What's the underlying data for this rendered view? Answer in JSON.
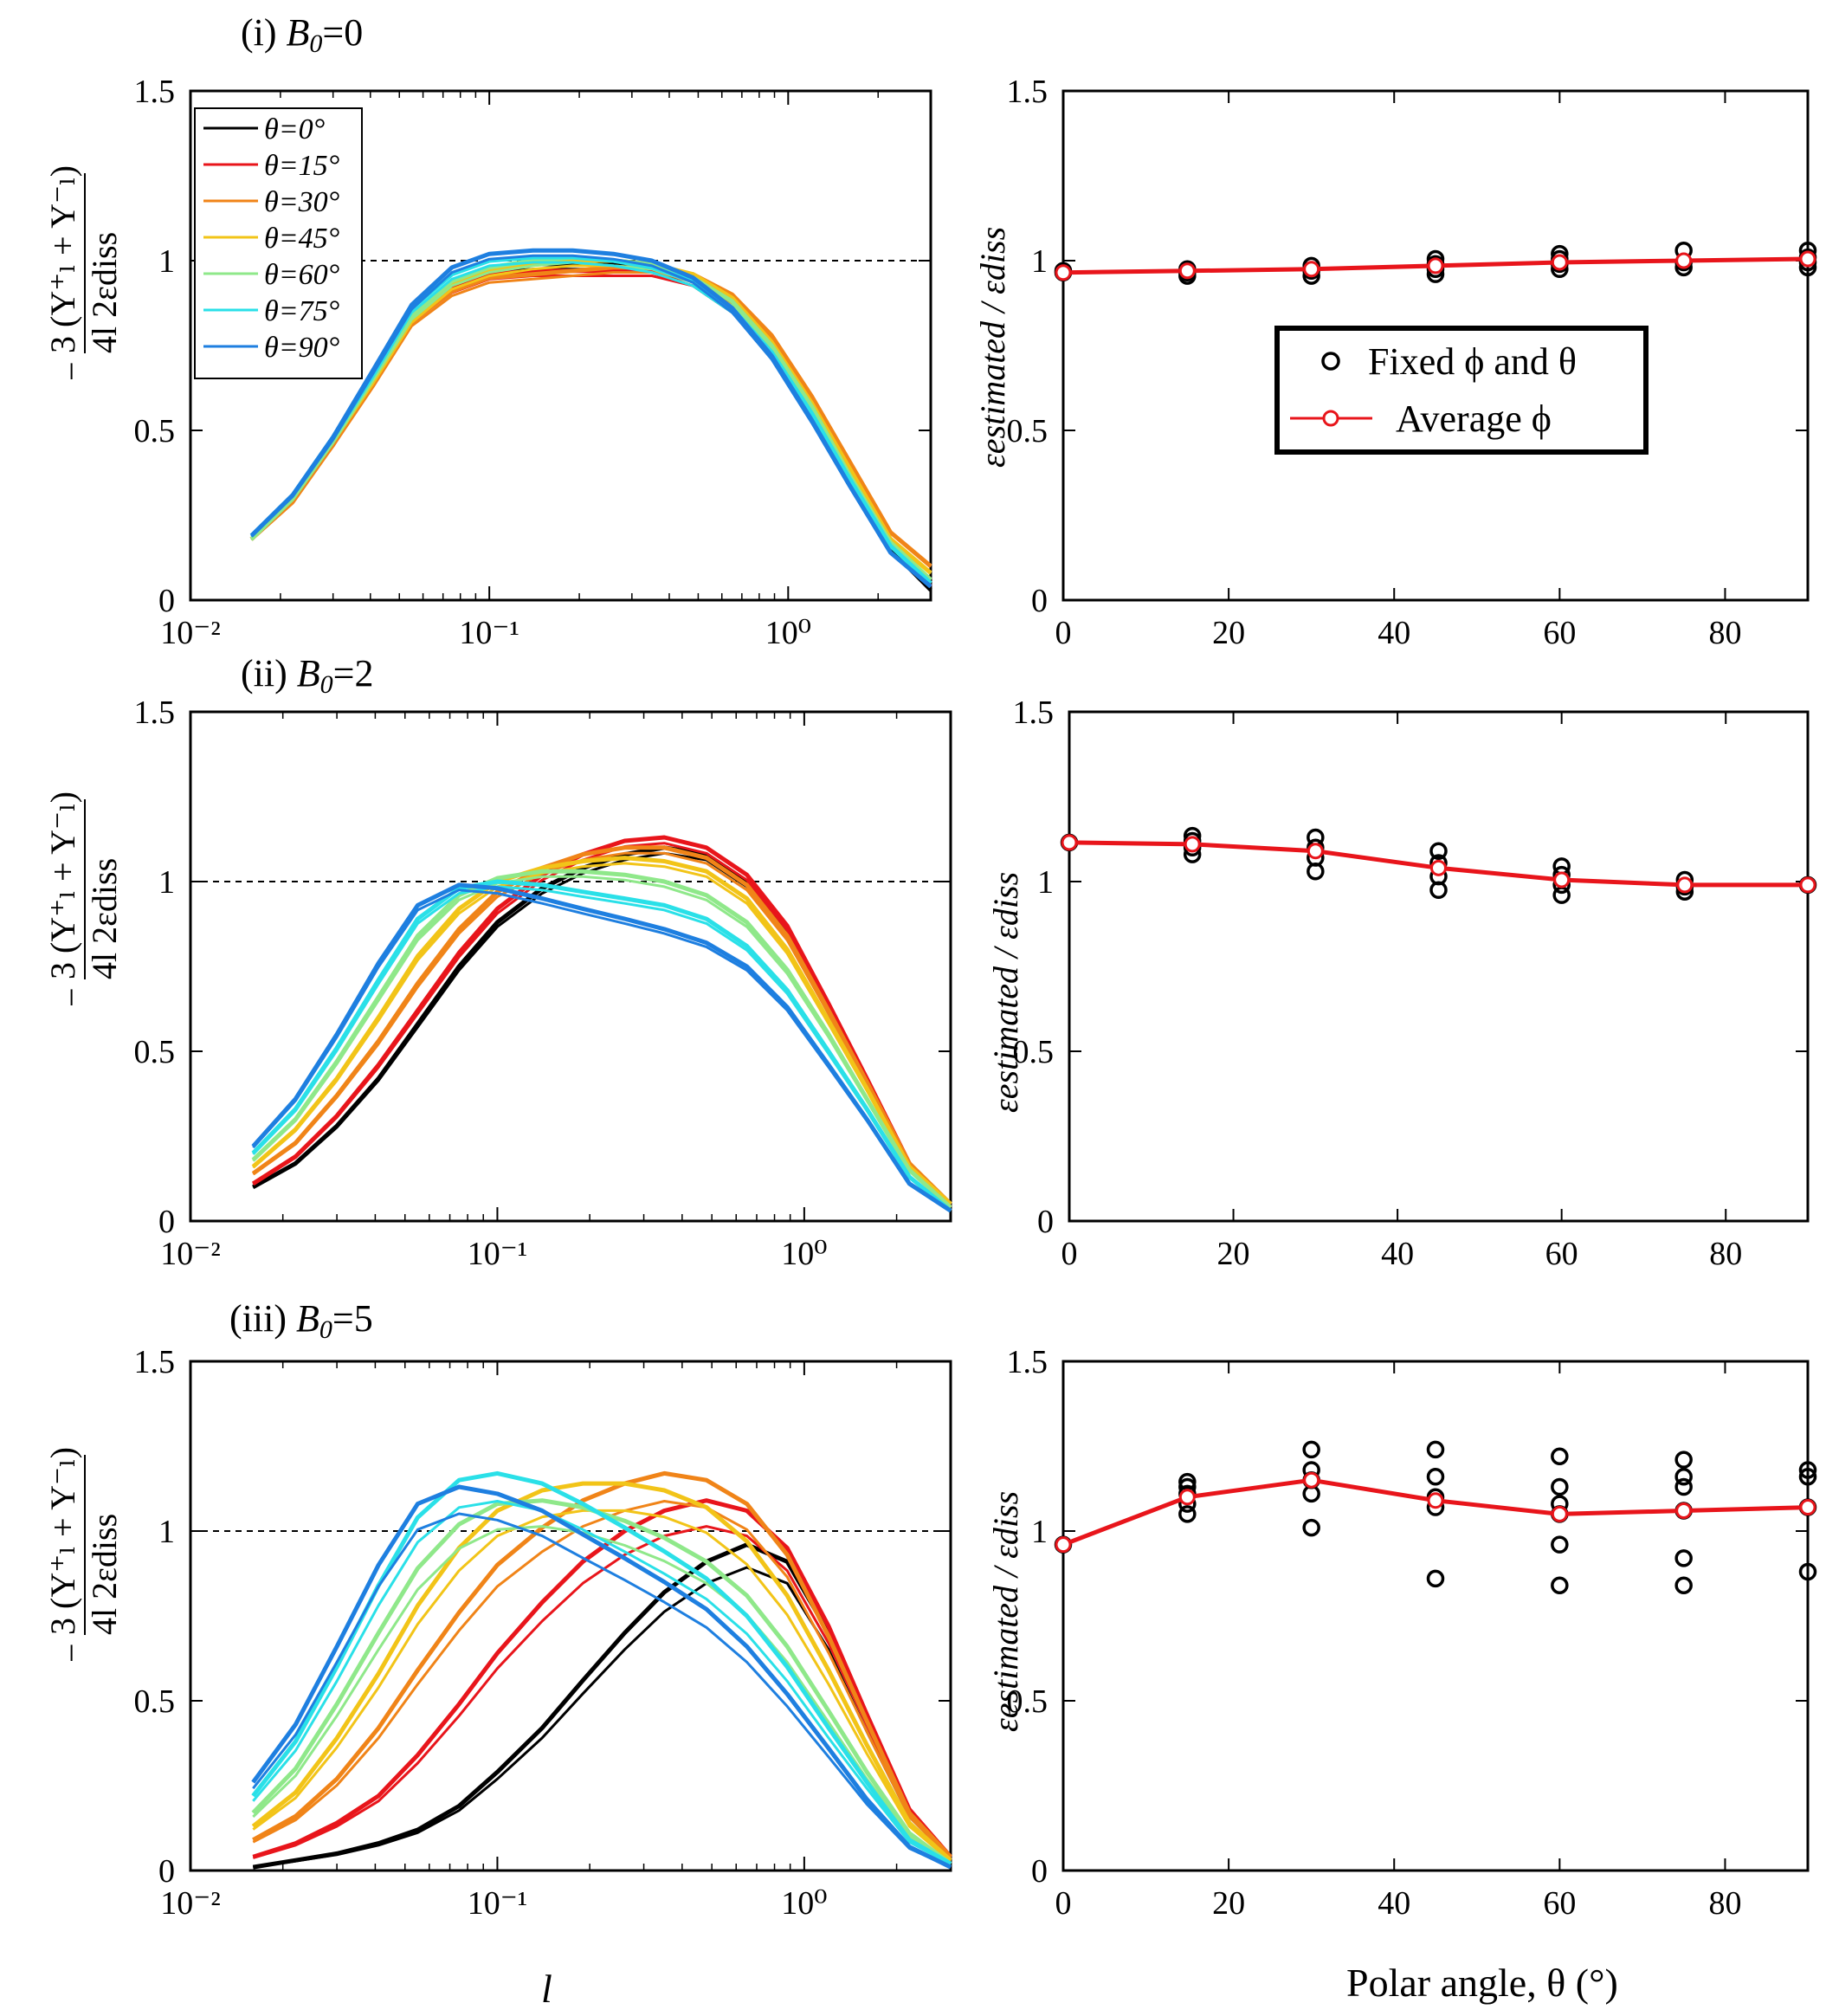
{
  "figure": {
    "row_titles": [
      "(i) B₀=0",
      "(ii) B₀=2",
      "(iii) B₀=5"
    ],
    "row_title_parts": [
      {
        "prefix": "(i) ",
        "sym": "B",
        "sub": "0",
        "val": "=0"
      },
      {
        "prefix": "(ii) ",
        "sym": "B",
        "sub": "0",
        "val": "=2"
      },
      {
        "prefix": "(iii) ",
        "sym": "B",
        "sub": "0",
        "val": "=5"
      }
    ],
    "left_ylabel_num": "3  (Y⁺ₗ + Y⁻ₗ)",
    "left_ylabel_den": "4l     2εdiss",
    "left_ylabel_minus": "−",
    "right_ylabel": "εestimated / εdiss",
    "left_xlabel": "l",
    "right_xlabel": "Polar angle, θ (°)",
    "left_yticks": [
      "0",
      "0.5",
      "1",
      "1.5"
    ],
    "left_xticks": [
      "10⁻²",
      "10⁻¹",
      "10⁰"
    ],
    "right_yticks": [
      "0",
      "0.5",
      "1",
      "1.5"
    ],
    "right_xticks": [
      "0",
      "20",
      "40",
      "60",
      "80"
    ],
    "legend_theta": [
      "θ=0°",
      "θ=15°",
      "θ=30°",
      "θ=45°",
      "θ=60°",
      "θ=75°",
      "θ=90°"
    ],
    "legend_right": [
      "Fixed ϕ and θ",
      "Average ϕ"
    ],
    "theta_colors": [
      "#000000",
      "#e8151b",
      "#f08418",
      "#f2c418",
      "#8fe88a",
      "#2ae0e8",
      "#1e7fe0"
    ]
  },
  "chart_data": [
    {
      "type": "line",
      "title": "(i) B0=0",
      "xscale": "log",
      "xlim": [
        0.01,
        3
      ],
      "ylim": [
        0,
        1.5
      ],
      "l_values": [
        0.016,
        0.022,
        0.03,
        0.041,
        0.055,
        0.075,
        0.1,
        0.14,
        0.19,
        0.26,
        0.35,
        0.48,
        0.65,
        0.88,
        1.2,
        1.6,
        2.2,
        3.0
      ],
      "reference_line": 1,
      "series": [
        {
          "name": "θ=0°",
          "values": [
            0.18,
            0.3,
            0.47,
            0.66,
            0.84,
            0.94,
            0.98,
            0.99,
            0.99,
            0.99,
            0.98,
            0.94,
            0.86,
            0.73,
            0.55,
            0.35,
            0.15,
            0.03
          ]
        },
        {
          "name": "θ=15°",
          "values": [
            0.18,
            0.3,
            0.46,
            0.65,
            0.83,
            0.92,
            0.96,
            0.97,
            0.97,
            0.97,
            0.97,
            0.94,
            0.87,
            0.75,
            0.57,
            0.37,
            0.17,
            0.04
          ]
        },
        {
          "name": "θ=30°",
          "values": [
            0.18,
            0.29,
            0.46,
            0.64,
            0.82,
            0.91,
            0.95,
            0.96,
            0.97,
            0.98,
            0.98,
            0.96,
            0.9,
            0.78,
            0.6,
            0.41,
            0.2,
            0.1
          ]
        },
        {
          "name": "θ=45°",
          "values": [
            0.18,
            0.3,
            0.47,
            0.65,
            0.83,
            0.93,
            0.97,
            0.99,
            1.0,
            1.0,
            0.99,
            0.96,
            0.89,
            0.76,
            0.58,
            0.39,
            0.18,
            0.08
          ]
        },
        {
          "name": "θ=60°",
          "values": [
            0.18,
            0.3,
            0.47,
            0.66,
            0.84,
            0.94,
            0.98,
            1.0,
            1.01,
            1.0,
            0.99,
            0.95,
            0.88,
            0.75,
            0.57,
            0.37,
            0.17,
            0.06
          ]
        },
        {
          "name": "θ=75°",
          "values": [
            0.19,
            0.31,
            0.48,
            0.67,
            0.86,
            0.96,
            1.0,
            1.01,
            1.01,
            1.0,
            0.98,
            0.94,
            0.86,
            0.73,
            0.55,
            0.36,
            0.16,
            0.05
          ]
        },
        {
          "name": "θ=90°",
          "values": [
            0.19,
            0.31,
            0.48,
            0.68,
            0.87,
            0.98,
            1.02,
            1.03,
            1.03,
            1.02,
            1.0,
            0.95,
            0.86,
            0.72,
            0.53,
            0.34,
            0.14,
            0.04
          ]
        }
      ]
    },
    {
      "type": "scatter",
      "title": "(i) B0=0 estimated / dissipation",
      "xlabel": "",
      "xlim": [
        0,
        90
      ],
      "ylim": [
        0,
        1.5
      ],
      "fixed_points": [
        {
          "theta": 0,
          "values": [
            0.965,
            0.97
          ]
        },
        {
          "theta": 15,
          "values": [
            0.955,
            0.965,
            0.975
          ]
        },
        {
          "theta": 30,
          "values": [
            0.955,
            0.97,
            0.985
          ]
        },
        {
          "theta": 45,
          "values": [
            0.96,
            0.975,
            0.99,
            1.005
          ]
        },
        {
          "theta": 60,
          "values": [
            0.975,
            0.99,
            1.005,
            1.02
          ]
        },
        {
          "theta": 75,
          "values": [
            0.98,
            0.995,
            1.03
          ]
        },
        {
          "theta": 90,
          "values": [
            0.98,
            0.995,
            1.01,
            1.03
          ]
        }
      ],
      "average": {
        "theta": [
          0,
          15,
          30,
          45,
          60,
          75,
          90
        ],
        "values": [
          0.965,
          0.97,
          0.975,
          0.985,
          0.995,
          1.0,
          1.005
        ]
      }
    },
    {
      "type": "line",
      "title": "(ii) B0=2",
      "xscale": "log",
      "xlim": [
        0.01,
        3
      ],
      "ylim": [
        0,
        1.5
      ],
      "l_values": [
        0.016,
        0.022,
        0.03,
        0.041,
        0.055,
        0.075,
        0.1,
        0.14,
        0.19,
        0.26,
        0.35,
        0.48,
        0.65,
        0.88,
        1.2,
        1.6,
        2.2,
        3.0
      ],
      "reference_line": 1,
      "series": [
        {
          "name": "θ=0°",
          "values": [
            0.1,
            0.17,
            0.28,
            0.42,
            0.58,
            0.75,
            0.88,
            0.98,
            1.04,
            1.08,
            1.1,
            1.08,
            1.0,
            0.85,
            0.62,
            0.4,
            0.16,
            0.04
          ]
        },
        {
          "name": "θ=15°",
          "values": [
            0.11,
            0.19,
            0.31,
            0.46,
            0.62,
            0.79,
            0.92,
            1.02,
            1.08,
            1.12,
            1.13,
            1.1,
            1.02,
            0.87,
            0.64,
            0.42,
            0.17,
            0.04
          ]
        },
        {
          "name": "θ=30°",
          "values": [
            0.14,
            0.23,
            0.37,
            0.53,
            0.7,
            0.86,
            0.97,
            1.04,
            1.08,
            1.1,
            1.1,
            1.07,
            0.99,
            0.84,
            0.62,
            0.41,
            0.17,
            0.05
          ]
        },
        {
          "name": "θ=45°",
          "values": [
            0.16,
            0.27,
            0.42,
            0.6,
            0.78,
            0.92,
            1.0,
            1.04,
            1.06,
            1.07,
            1.06,
            1.03,
            0.95,
            0.8,
            0.59,
            0.39,
            0.16,
            0.05
          ]
        },
        {
          "name": "θ=60°",
          "values": [
            0.18,
            0.3,
            0.47,
            0.66,
            0.84,
            0.96,
            1.01,
            1.03,
            1.03,
            1.02,
            1.0,
            0.96,
            0.88,
            0.74,
            0.55,
            0.36,
            0.15,
            0.04
          ]
        },
        {
          "name": "θ=75°",
          "values": [
            0.2,
            0.33,
            0.51,
            0.71,
            0.89,
            0.98,
            1.0,
            0.99,
            0.97,
            0.95,
            0.93,
            0.89,
            0.81,
            0.68,
            0.5,
            0.33,
            0.13,
            0.03
          ]
        },
        {
          "name": "θ=90°",
          "values": [
            0.22,
            0.36,
            0.55,
            0.76,
            0.93,
            0.99,
            0.98,
            0.95,
            0.92,
            0.89,
            0.86,
            0.82,
            0.75,
            0.63,
            0.46,
            0.3,
            0.11,
            0.03
          ]
        }
      ]
    },
    {
      "type": "scatter",
      "title": "(ii) B0=2 estimated / dissipation",
      "xlabel": "",
      "xlim": [
        0,
        90
      ],
      "ylim": [
        0,
        1.5
      ],
      "fixed_points": [
        {
          "theta": 0,
          "values": [
            1.115
          ]
        },
        {
          "theta": 15,
          "values": [
            1.08,
            1.1,
            1.12,
            1.135
          ]
        },
        {
          "theta": 30,
          "values": [
            1.03,
            1.07,
            1.1,
            1.13
          ]
        },
        {
          "theta": 45,
          "values": [
            0.975,
            1.015,
            1.055,
            1.09
          ]
        },
        {
          "theta": 60,
          "values": [
            0.96,
            0.99,
            1.02,
            1.045
          ]
        },
        {
          "theta": 75,
          "values": [
            0.97,
            0.985,
            1.005
          ]
        },
        {
          "theta": 90,
          "values": [
            0.99
          ]
        }
      ],
      "average": {
        "theta": [
          0,
          15,
          30,
          45,
          60,
          75,
          90
        ],
        "values": [
          1.115,
          1.11,
          1.09,
          1.04,
          1.005,
          0.99,
          0.99
        ]
      }
    },
    {
      "type": "line",
      "title": "(iii) B0=5",
      "xlabel": "l",
      "xscale": "log",
      "xlim": [
        0.01,
        3
      ],
      "ylim": [
        0,
        1.5
      ],
      "l_values": [
        0.016,
        0.022,
        0.03,
        0.041,
        0.055,
        0.075,
        0.1,
        0.14,
        0.19,
        0.26,
        0.35,
        0.48,
        0.65,
        0.88,
        1.2,
        1.6,
        2.2,
        3.0
      ],
      "reference_line": 1,
      "series": [
        {
          "name": "θ=0°",
          "values": [
            0.01,
            0.03,
            0.05,
            0.08,
            0.12,
            0.19,
            0.29,
            0.42,
            0.56,
            0.7,
            0.82,
            0.91,
            0.96,
            0.91,
            0.7,
            0.44,
            0.17,
            0.04
          ]
        },
        {
          "name": "θ=15°",
          "values": [
            0.04,
            0.08,
            0.14,
            0.22,
            0.34,
            0.49,
            0.64,
            0.79,
            0.91,
            1.0,
            1.06,
            1.09,
            1.06,
            0.95,
            0.72,
            0.46,
            0.18,
            0.04
          ]
        },
        {
          "name": "θ=30°",
          "values": [
            0.09,
            0.16,
            0.27,
            0.42,
            0.59,
            0.76,
            0.9,
            1.01,
            1.09,
            1.14,
            1.17,
            1.15,
            1.08,
            0.93,
            0.69,
            0.44,
            0.17,
            0.04
          ]
        },
        {
          "name": "θ=45°",
          "values": [
            0.13,
            0.23,
            0.39,
            0.58,
            0.78,
            0.95,
            1.06,
            1.12,
            1.14,
            1.14,
            1.12,
            1.07,
            0.97,
            0.81,
            0.59,
            0.37,
            0.14,
            0.03
          ]
        },
        {
          "name": "θ=60°",
          "values": [
            0.17,
            0.3,
            0.49,
            0.7,
            0.89,
            1.02,
            1.08,
            1.09,
            1.07,
            1.03,
            0.98,
            0.91,
            0.81,
            0.66,
            0.47,
            0.29,
            0.11,
            0.02
          ]
        },
        {
          "name": "θ=75°",
          "values": [
            0.22,
            0.38,
            0.6,
            0.84,
            1.04,
            1.15,
            1.17,
            1.14,
            1.08,
            1.01,
            0.94,
            0.86,
            0.75,
            0.6,
            0.42,
            0.26,
            0.09,
            0.02
          ]
        },
        {
          "name": "θ=90°",
          "values": [
            0.26,
            0.43,
            0.66,
            0.9,
            1.08,
            1.13,
            1.11,
            1.06,
            0.99,
            0.92,
            0.85,
            0.77,
            0.66,
            0.52,
            0.36,
            0.21,
            0.07,
            0.01
          ]
        }
      ]
    },
    {
      "type": "scatter",
      "title": "(iii) B0=5 estimated / dissipation",
      "xlabel": "Polar angle, θ (°)",
      "xlim": [
        0,
        90
      ],
      "ylim": [
        0,
        1.5
      ],
      "fixed_points": [
        {
          "theta": 0,
          "values": [
            0.96
          ]
        },
        {
          "theta": 15,
          "values": [
            1.05,
            1.08,
            1.11,
            1.13,
            1.145
          ]
        },
        {
          "theta": 30,
          "values": [
            1.01,
            1.11,
            1.15,
            1.18,
            1.24
          ]
        },
        {
          "theta": 45,
          "values": [
            0.86,
            1.07,
            1.1,
            1.16,
            1.24
          ]
        },
        {
          "theta": 60,
          "values": [
            0.84,
            0.96,
            1.05,
            1.08,
            1.13,
            1.22
          ]
        },
        {
          "theta": 75,
          "values": [
            0.84,
            0.92,
            1.06,
            1.13,
            1.16,
            1.21
          ]
        },
        {
          "theta": 90,
          "values": [
            0.88,
            1.07,
            1.16,
            1.18
          ]
        }
      ],
      "average": {
        "theta": [
          0,
          15,
          30,
          45,
          60,
          75,
          90
        ],
        "values": [
          0.96,
          1.1,
          1.15,
          1.09,
          1.05,
          1.06,
          1.07
        ]
      }
    }
  ]
}
